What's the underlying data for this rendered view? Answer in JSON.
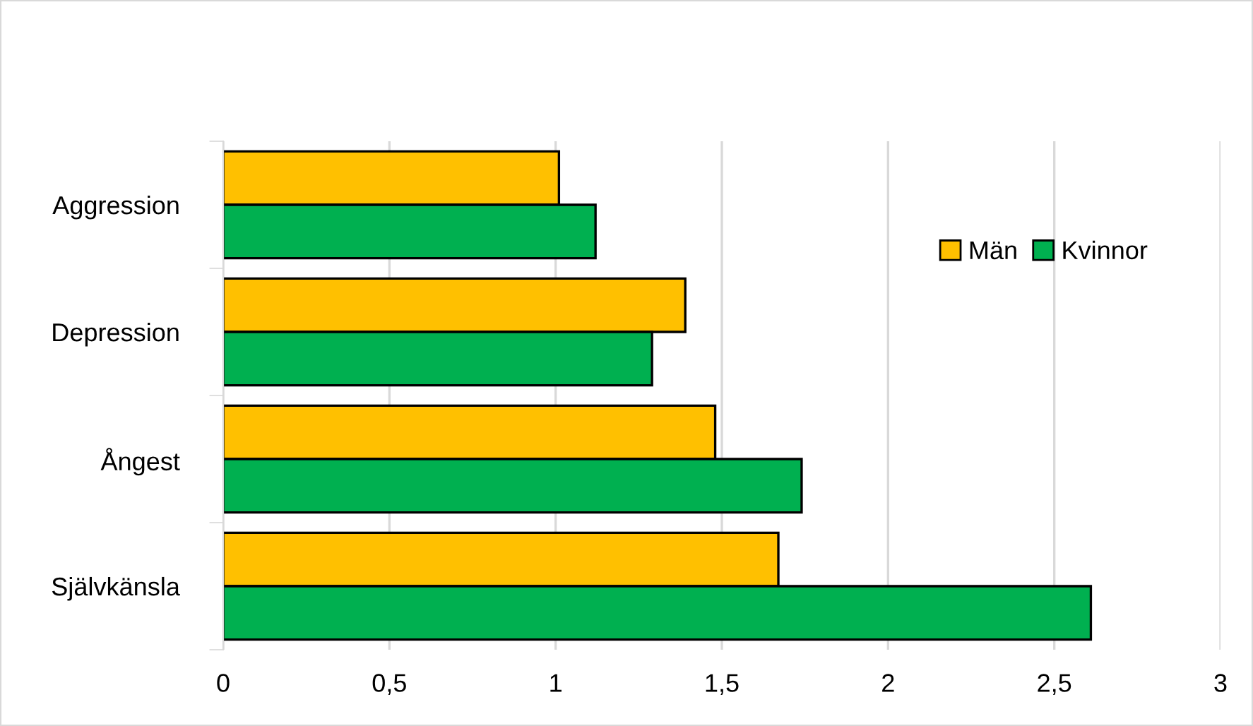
{
  "chart_data": {
    "type": "bar",
    "orientation": "horizontal",
    "categories": [
      "Aggression",
      "Depression",
      "Ångest",
      "Självkänsla"
    ],
    "series": [
      {
        "name": "Män",
        "color": "#ffc000",
        "values": [
          1.01,
          1.39,
          1.48,
          1.67
        ]
      },
      {
        "name": "Kvinnor",
        "color": "#00b050",
        "values": [
          1.12,
          1.29,
          1.74,
          2.61
        ]
      }
    ],
    "xlim": [
      0,
      3
    ],
    "xticks": [
      0,
      {
        "value": 0.5,
        "label": "0,5"
      },
      1,
      {
        "value": 1.5,
        "label": "1,5"
      },
      2,
      {
        "value": 2.5,
        "label": "2,5"
      },
      3
    ],
    "grid": "x",
    "legend": "top right"
  }
}
